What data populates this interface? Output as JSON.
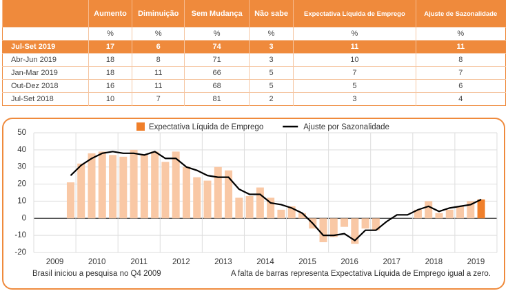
{
  "table": {
    "headers": [
      "Aumento",
      "Diminuição",
      "Sem Mudança",
      "Não sabe",
      "Expectativa Líquida de Emprego",
      "Ajuste de Sazonalidade"
    ],
    "units": [
      "%",
      "%",
      "%",
      "%",
      "%",
      "%"
    ],
    "rows": [
      {
        "label": "Jul-Set 2019",
        "values": [
          17,
          6,
          74,
          3,
          11,
          11
        ],
        "highlight": true
      },
      {
        "label": "Abr-Jun 2019",
        "values": [
          18,
          8,
          71,
          3,
          10,
          8
        ]
      },
      {
        "label": "Jan-Mar 2019",
        "values": [
          18,
          11,
          66,
          5,
          7,
          7
        ]
      },
      {
        "label": "Out-Dez 2018",
        "values": [
          16,
          11,
          68,
          5,
          5,
          6
        ]
      },
      {
        "label": "Jul-Set 2018",
        "values": [
          10,
          7,
          81,
          2,
          3,
          4
        ]
      }
    ]
  },
  "chart_data": {
    "type": "combo",
    "categories": [
      null,
      null,
      null,
      null,
      null,
      null,
      null,
      null,
      null,
      null,
      null,
      null,
      null,
      null,
      null,
      null,
      null,
      null,
      null,
      null,
      null,
      null,
      null,
      null,
      null,
      null,
      null,
      null,
      null,
      null,
      null,
      null,
      null,
      null,
      null,
      null,
      null,
      null,
      null,
      null
    ],
    "xticks": [
      2009,
      2010,
      2011,
      2012,
      2013,
      2014,
      2015,
      2016,
      2017,
      2018,
      2019
    ],
    "ylim": [
      -20,
      50
    ],
    "yticks": [
      -20,
      -10,
      0,
      10,
      20,
      30,
      40,
      50
    ],
    "grid": true,
    "series": [
      {
        "name": "Expectativa Líquida de Emprego",
        "type": "bar",
        "color": "#f9c8a5",
        "highlight_color": "#f07f2a",
        "values": [
          21,
          32,
          38,
          39,
          37,
          36,
          40,
          37,
          39,
          33,
          39,
          30,
          24,
          22,
          30,
          28,
          12,
          13,
          18,
          12,
          5,
          7,
          3,
          -6,
          -14,
          -11,
          -5,
          -15,
          -6,
          -7,
          0,
          0,
          0,
          5,
          10,
          3,
          5,
          7,
          10,
          11
        ]
      },
      {
        "name": "Ajuste por Sazonalidade",
        "type": "line",
        "color": "#000000",
        "values": [
          25,
          31,
          35,
          38,
          39,
          38,
          38,
          37,
          39,
          35,
          35,
          30,
          28,
          25,
          24,
          24,
          17,
          14,
          14,
          9,
          8,
          6,
          3,
          -3,
          -10,
          -10,
          -9,
          -13,
          -7,
          -7,
          -2,
          2,
          2,
          5,
          7,
          4,
          6,
          7,
          8,
          11
        ]
      }
    ],
    "notes": [
      "Brasil iniciou a pesquisa no Q4 2009",
      "A falta de barras representa Expectativa Líquida de Emprego igual a zero."
    ]
  }
}
